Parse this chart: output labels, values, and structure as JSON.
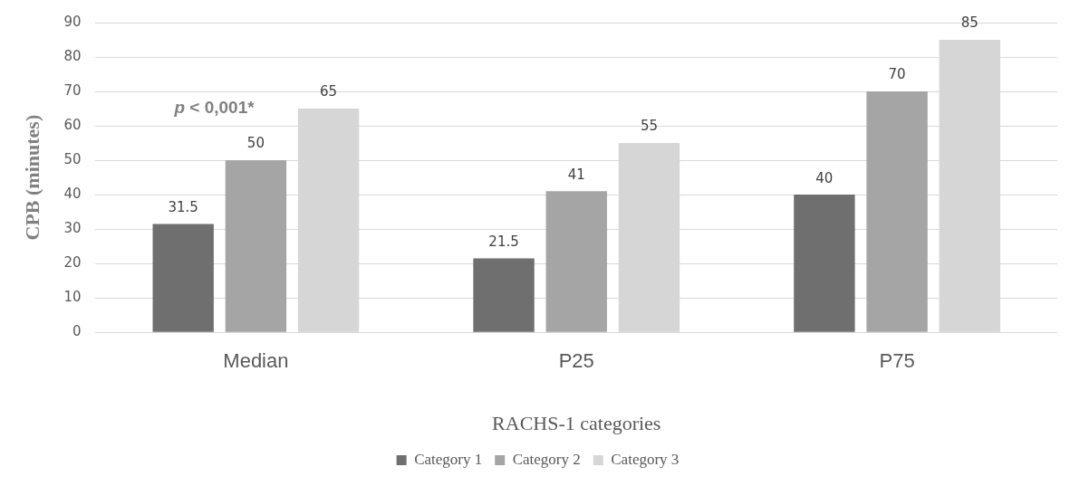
{
  "chart_data": {
    "type": "bar",
    "ylabel": "CPB (minutes)",
    "xlabel": "RACHS-1 categories",
    "categories": [
      "Median",
      "P25",
      "P75"
    ],
    "series": [
      {
        "name": "Category 1",
        "color": "#6f6f6f",
        "values": [
          31.5,
          21.5,
          40
        ]
      },
      {
        "name": "Category 2",
        "color": "#a5a5a5",
        "values": [
          50,
          41,
          70
        ]
      },
      {
        "name": "Category 3",
        "color": "#d6d6d6",
        "values": [
          65,
          55,
          85
        ]
      }
    ],
    "ylim": [
      0,
      90
    ],
    "yticks": [
      0,
      10,
      20,
      30,
      40,
      50,
      60,
      70,
      80,
      90
    ],
    "grid": "y",
    "legend": "bottom",
    "data_labels": true,
    "annotations": [
      "p < 0,001*"
    ]
  }
}
